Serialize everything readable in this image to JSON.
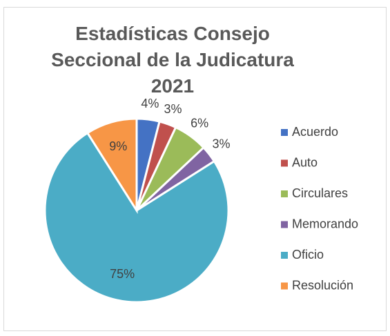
{
  "chart_data": {
    "type": "pie",
    "title": "Estadísticas Consejo Seccional de la Judicatura 2021",
    "categories": [
      "Acuerdo",
      "Auto",
      "Circulares",
      "Memorando",
      "Oficio",
      "Resolución"
    ],
    "values": [
      4,
      3,
      6,
      3,
      75,
      9
    ],
    "value_labels": [
      "4%",
      "3%",
      "6%",
      "3%",
      "75%",
      "9%"
    ],
    "colors": [
      "#4472c4",
      "#c0504d",
      "#9bbb59",
      "#8064a2",
      "#4bacc6",
      "#f79646"
    ],
    "legend": "right"
  }
}
